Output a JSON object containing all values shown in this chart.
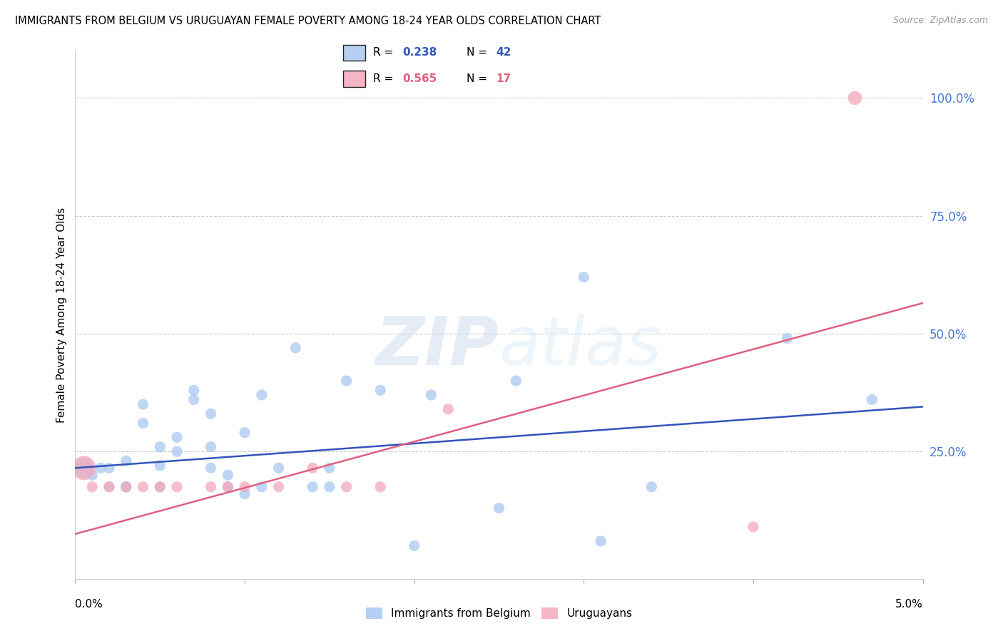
{
  "title": "IMMIGRANTS FROM BELGIUM VS URUGUAYAN FEMALE POVERTY AMONG 18-24 YEAR OLDS CORRELATION CHART",
  "source": "Source: ZipAtlas.com",
  "ylabel": "Female Poverty Among 18-24 Year Olds",
  "watermark": "ZIPatlas",
  "legend_blue_r": "0.238",
  "legend_blue_n": "42",
  "legend_pink_r": "0.565",
  "legend_pink_n": "17",
  "blue_color": "#A8C8F0",
  "pink_color": "#F4A8BC",
  "blue_line_color": "#3355BB",
  "pink_line_color": "#E06080",
  "right_axis_color": "#4477CC",
  "xlim": [
    0.0,
    0.05
  ],
  "ylim": [
    -0.02,
    1.1
  ],
  "yticks_right": [
    0.25,
    0.5,
    0.75,
    1.0
  ],
  "ytick_labels_right": [
    "25.0%",
    "50.0%",
    "75.0%",
    "100.0%"
  ],
  "blue_scatter_x": [
    0.0005,
    0.001,
    0.0015,
    0.002,
    0.002,
    0.003,
    0.003,
    0.003,
    0.004,
    0.004,
    0.005,
    0.005,
    0.005,
    0.006,
    0.006,
    0.007,
    0.007,
    0.008,
    0.008,
    0.008,
    0.009,
    0.009,
    0.01,
    0.01,
    0.011,
    0.011,
    0.012,
    0.013,
    0.014,
    0.015,
    0.015,
    0.016,
    0.018,
    0.02,
    0.021,
    0.025,
    0.026,
    0.03,
    0.031,
    0.034,
    0.042,
    0.047
  ],
  "blue_scatter_y": [
    0.215,
    0.2,
    0.215,
    0.215,
    0.175,
    0.23,
    0.175,
    0.175,
    0.31,
    0.35,
    0.22,
    0.26,
    0.175,
    0.25,
    0.28,
    0.36,
    0.38,
    0.215,
    0.26,
    0.33,
    0.175,
    0.2,
    0.16,
    0.29,
    0.175,
    0.37,
    0.215,
    0.47,
    0.175,
    0.175,
    0.215,
    0.4,
    0.38,
    0.05,
    0.37,
    0.13,
    0.4,
    0.62,
    0.06,
    0.175,
    0.49,
    0.36
  ],
  "blue_scatter_sizes": [
    400,
    120,
    120,
    120,
    120,
    120,
    120,
    120,
    120,
    120,
    120,
    120,
    120,
    120,
    120,
    120,
    120,
    120,
    120,
    120,
    120,
    120,
    120,
    120,
    120,
    120,
    120,
    120,
    120,
    120,
    120,
    120,
    120,
    120,
    120,
    120,
    120,
    120,
    120,
    120,
    120,
    120
  ],
  "pink_scatter_x": [
    0.0005,
    0.001,
    0.002,
    0.003,
    0.004,
    0.005,
    0.006,
    0.008,
    0.009,
    0.01,
    0.012,
    0.014,
    0.016,
    0.018,
    0.022,
    0.04,
    0.046
  ],
  "pink_scatter_y": [
    0.215,
    0.175,
    0.175,
    0.175,
    0.175,
    0.175,
    0.175,
    0.175,
    0.175,
    0.175,
    0.175,
    0.215,
    0.175,
    0.175,
    0.34,
    0.09,
    1.0
  ],
  "pink_scatter_sizes": [
    600,
    120,
    120,
    120,
    120,
    120,
    120,
    120,
    120,
    120,
    120,
    120,
    120,
    120,
    120,
    120,
    200
  ],
  "blue_line_x": [
    0.0,
    0.05
  ],
  "blue_line_y": [
    0.215,
    0.345
  ],
  "pink_line_x": [
    0.0,
    0.05
  ],
  "pink_line_y": [
    0.075,
    0.565
  ]
}
